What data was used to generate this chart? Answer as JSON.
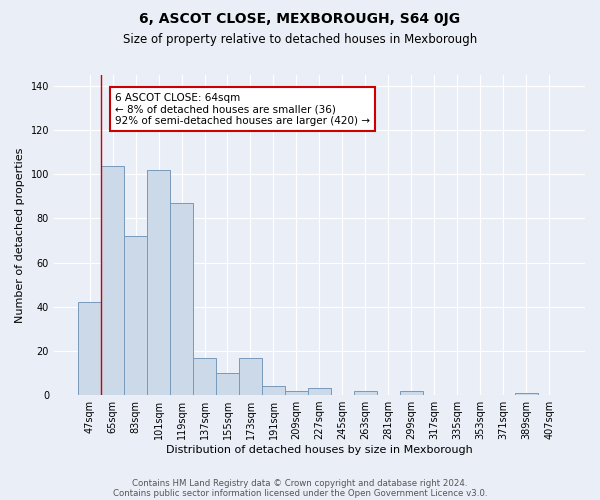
{
  "title": "6, ASCOT CLOSE, MEXBOROUGH, S64 0JG",
  "subtitle": "Size of property relative to detached houses in Mexborough",
  "xlabel": "Distribution of detached houses by size in Mexborough",
  "ylabel": "Number of detached properties",
  "bar_color": "#ccd9e8",
  "bar_edge_color": "#7799bb",
  "categories": [
    "47sqm",
    "65sqm",
    "83sqm",
    "101sqm",
    "119sqm",
    "137sqm",
    "155sqm",
    "173sqm",
    "191sqm",
    "209sqm",
    "227sqm",
    "245sqm",
    "263sqm",
    "281sqm",
    "299sqm",
    "317sqm",
    "335sqm",
    "353sqm",
    "371sqm",
    "389sqm",
    "407sqm"
  ],
  "values": [
    42,
    104,
    72,
    102,
    87,
    17,
    10,
    17,
    4,
    2,
    3,
    0,
    2,
    0,
    2,
    0,
    0,
    0,
    0,
    1,
    0
  ],
  "ylim": [
    0,
    145
  ],
  "yticks": [
    0,
    20,
    40,
    60,
    80,
    100,
    120,
    140
  ],
  "vline_bar_index": 1,
  "annotation_text": "6 ASCOT CLOSE: 64sqm\n← 8% of detached houses are smaller (36)\n92% of semi-detached houses are larger (420) →",
  "annotation_box_color": "#ffffff",
  "annotation_box_edge": "#cc0000",
  "vline_color": "#cc0000",
  "footer1": "Contains HM Land Registry data © Crown copyright and database right 2024.",
  "footer2": "Contains public sector information licensed under the Open Government Licence v3.0.",
  "background_color": "#eaeff7",
  "plot_background": "#eaeff7",
  "grid_color": "#ffffff",
  "title_fontsize": 10,
  "subtitle_fontsize": 8.5,
  "xlabel_fontsize": 8,
  "ylabel_fontsize": 8,
  "tick_fontsize": 7,
  "annotation_fontsize": 7.5,
  "footer_fontsize": 6.2
}
